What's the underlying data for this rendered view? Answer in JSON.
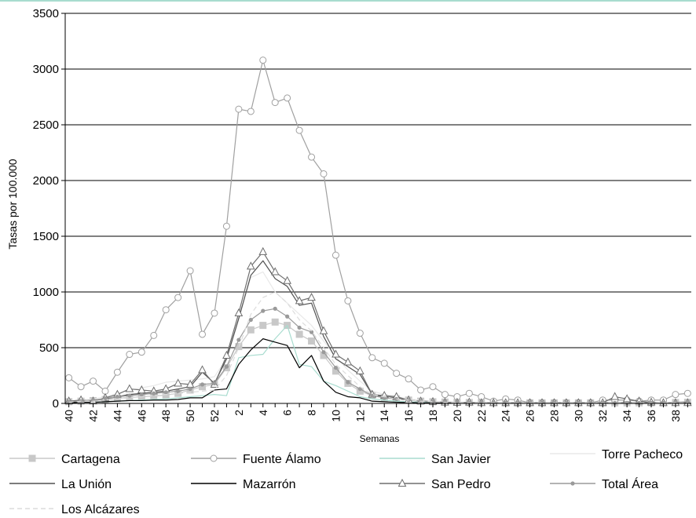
{
  "chart_data": {
    "type": "line",
    "title": "",
    "xlabel": "Semanas",
    "ylabel": "Tasas por 100.000",
    "ylim": [
      0,
      3500
    ],
    "yticks": [
      0,
      500,
      1000,
      1500,
      2000,
      2500,
      3000,
      3500
    ],
    "grid": "horizontal",
    "legend_position": "bottom",
    "x_tick_labels": [
      "40",
      "42",
      "44",
      "46",
      "48",
      "50",
      "52",
      "2",
      "4",
      "6",
      "8",
      "10",
      "12",
      "14",
      "16",
      "18",
      "20",
      "22",
      "24",
      "26",
      "28",
      "30",
      "32",
      "34",
      "36",
      "38"
    ],
    "categories": [
      "40",
      "41",
      "42",
      "43",
      "44",
      "45",
      "46",
      "47",
      "48",
      "49",
      "50",
      "51",
      "52",
      "1",
      "2",
      "3",
      "4",
      "5",
      "6",
      "7",
      "8",
      "9",
      "10",
      "11",
      "12",
      "13",
      "14",
      "15",
      "16",
      "17",
      "18",
      "19",
      "20",
      "21",
      "22",
      "23",
      "24",
      "25",
      "26",
      "27",
      "28",
      "29",
      "30",
      "31",
      "32",
      "33",
      "34",
      "35",
      "36",
      "37",
      "38",
      "39"
    ],
    "series": [
      {
        "name": "Cartagena",
        "color": "#c8c8c8",
        "marker": "square",
        "dash": "",
        "values": [
          15,
          20,
          25,
          35,
          45,
          55,
          60,
          65,
          75,
          90,
          120,
          150,
          170,
          320,
          510,
          660,
          700,
          730,
          700,
          620,
          560,
          430,
          290,
          180,
          110,
          70,
          50,
          40,
          30,
          20,
          15,
          12,
          10,
          8,
          8,
          6,
          5,
          5,
          5,
          5,
          5,
          5,
          5,
          5,
          5,
          5,
          5,
          5,
          5,
          5,
          8,
          10
        ]
      },
      {
        "name": "Fuente Álamo",
        "color": "#a0a0a0",
        "marker": "circle",
        "dash": "",
        "values": [
          230,
          150,
          200,
          110,
          280,
          440,
          460,
          610,
          840,
          950,
          1190,
          620,
          810,
          1590,
          2640,
          2620,
          3080,
          2700,
          2740,
          2450,
          2210,
          2060,
          1330,
          920,
          630,
          410,
          360,
          270,
          220,
          120,
          150,
          80,
          60,
          90,
          60,
          20,
          40,
          30,
          5,
          5,
          5,
          5,
          5,
          5,
          30,
          30,
          30,
          20,
          30,
          30,
          80,
          90
        ]
      },
      {
        "name": "San Javier",
        "color": "#a8dccf",
        "marker": "none",
        "dash": "",
        "values": [
          5,
          10,
          10,
          15,
          20,
          25,
          30,
          35,
          40,
          50,
          60,
          70,
          80,
          70,
          410,
          430,
          440,
          580,
          700,
          350,
          330,
          200,
          160,
          110,
          60,
          40,
          30,
          20,
          15,
          10,
          8,
          6,
          5,
          5,
          5,
          5,
          5,
          5,
          5,
          5,
          5,
          5,
          5,
          5,
          5,
          5,
          5,
          5,
          5,
          5,
          5,
          5
        ]
      },
      {
        "name": "Torre Pacheco",
        "color": "#e8e8e8",
        "marker": "none",
        "dash": "",
        "values": [
          20,
          30,
          40,
          60,
          90,
          120,
          140,
          160,
          190,
          200,
          210,
          220,
          240,
          400,
          780,
          1130,
          1180,
          1000,
          900,
          800,
          700,
          560,
          420,
          300,
          200,
          110,
          80,
          60,
          40,
          30,
          20,
          15,
          12,
          10,
          8,
          6,
          5,
          5,
          5,
          5,
          5,
          5,
          5,
          5,
          5,
          5,
          5,
          5,
          5,
          5,
          5,
          5
        ]
      },
      {
        "name": "La Unión",
        "color": "#505050",
        "marker": "none",
        "dash": "",
        "values": [
          10,
          20,
          30,
          40,
          60,
          80,
          90,
          100,
          110,
          130,
          150,
          280,
          180,
          400,
          760,
          1150,
          1280,
          1120,
          1050,
          880,
          900,
          600,
          400,
          330,
          260,
          80,
          60,
          50,
          30,
          20,
          15,
          10,
          8,
          6,
          5,
          5,
          5,
          5,
          5,
          5,
          5,
          5,
          5,
          5,
          5,
          5,
          5,
          5,
          5,
          5,
          5,
          5
        ]
      },
      {
        "name": "Mazarrón",
        "color": "#000000",
        "marker": "none",
        "dash": "",
        "values": [
          5,
          10,
          10,
          15,
          20,
          25,
          25,
          30,
          30,
          35,
          50,
          50,
          120,
          130,
          350,
          480,
          580,
          550,
          520,
          320,
          430,
          200,
          100,
          60,
          50,
          20,
          15,
          10,
          8,
          5,
          5,
          5,
          5,
          5,
          5,
          5,
          5,
          5,
          5,
          5,
          5,
          5,
          5,
          5,
          5,
          5,
          5,
          5,
          5,
          5,
          5,
          5
        ]
      },
      {
        "name": "San Pedro",
        "color": "#6e6e6e",
        "marker": "triangle",
        "dash": "",
        "values": [
          20,
          30,
          20,
          50,
          80,
          130,
          120,
          110,
          130,
          180,
          170,
          300,
          170,
          430,
          810,
          1230,
          1360,
          1180,
          1100,
          920,
          950,
          650,
          440,
          370,
          290,
          80,
          70,
          60,
          30,
          20,
          15,
          10,
          8,
          10,
          5,
          5,
          5,
          5,
          5,
          5,
          5,
          5,
          5,
          5,
          5,
          60,
          40,
          20,
          10,
          5,
          5,
          5
        ]
      },
      {
        "name": "Total Área",
        "color": "#9a9a9a",
        "marker": "dot",
        "dash": "",
        "values": [
          15,
          20,
          30,
          45,
          60,
          70,
          80,
          90,
          100,
          110,
          130,
          170,
          180,
          330,
          570,
          750,
          830,
          850,
          780,
          680,
          640,
          460,
          320,
          190,
          130,
          70,
          50,
          40,
          30,
          20,
          15,
          12,
          10,
          8,
          8,
          6,
          5,
          5,
          5,
          5,
          5,
          5,
          5,
          5,
          5,
          5,
          5,
          5,
          5,
          5,
          10,
          15
        ]
      },
      {
        "name": "Los Alcázares",
        "color": "#dcdcdc",
        "marker": "none",
        "dash": "6,4",
        "values": [
          10,
          20,
          20,
          30,
          40,
          50,
          60,
          70,
          80,
          90,
          100,
          110,
          120,
          250,
          500,
          800,
          950,
          1000,
          900,
          750,
          650,
          500,
          350,
          250,
          150,
          80,
          60,
          40,
          30,
          20,
          15,
          10,
          8,
          6,
          5,
          5,
          5,
          5,
          5,
          5,
          5,
          5,
          5,
          5,
          5,
          5,
          5,
          5,
          5,
          5,
          5,
          5
        ]
      }
    ]
  }
}
